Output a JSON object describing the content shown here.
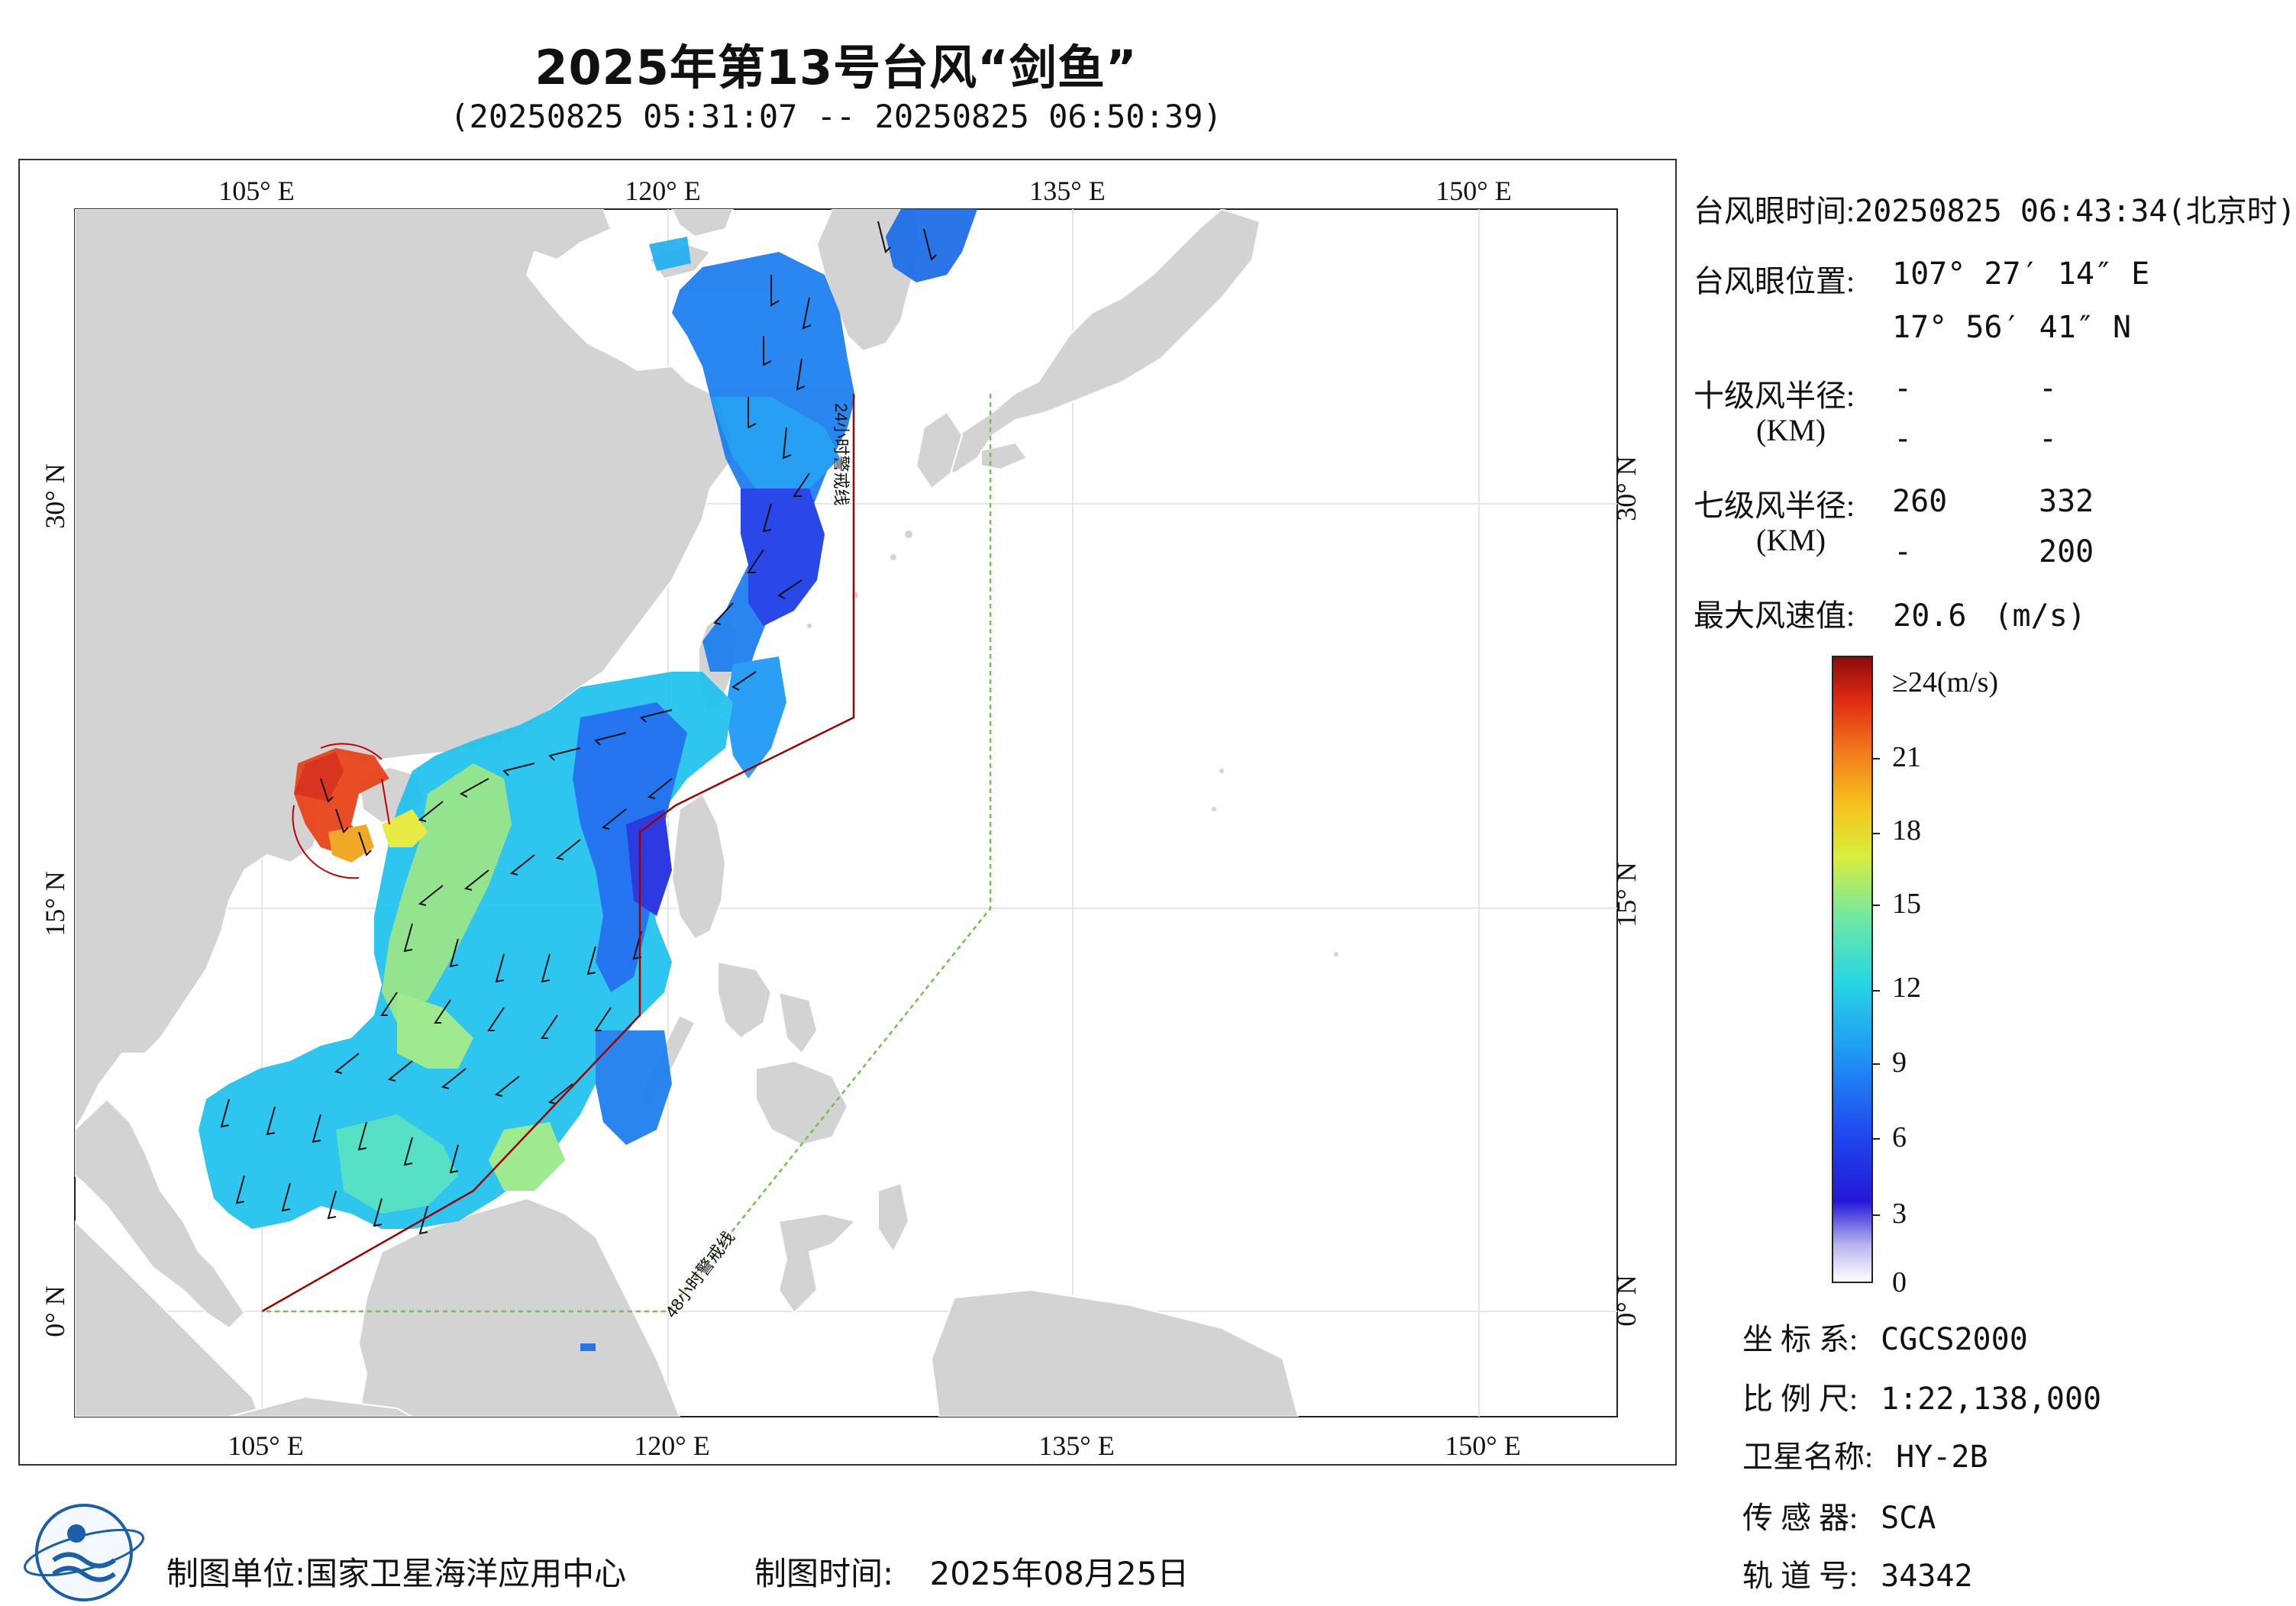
{
  "header": {
    "title": "2025年第13号台风“剑鱼”",
    "time_range": "(20250825 05:31:07 -- 20250825 06:50:39)"
  },
  "map": {
    "lon_labels_top": [
      "105° E",
      "120° E",
      "135° E",
      "150° E"
    ],
    "lon_labels_bottom": [
      "105° E",
      "120° E",
      "135° E",
      "150° E"
    ],
    "lat_labels_left": [
      "30° N",
      "15° N",
      "0° N"
    ],
    "lat_labels_right": [
      "30° N",
      "15° N",
      "0° N"
    ],
    "warning_24h_label": "24小时警戒线",
    "warning_48h_label": "48小时警戒线",
    "colors": {
      "land": "#d3d3d3",
      "ocean": "#ffffff",
      "warning_24h": "#a00000",
      "warning_48h": "#6fc24a",
      "grid": "#e6e6e6"
    }
  },
  "info_panel": {
    "eye_time_label": "台风眼时间:",
    "eye_time_value": "20250825 06:43:34(北京时)",
    "eye_pos_label": "台风眼位置:",
    "eye_lon": "107° 27′ 14″ E",
    "eye_lat": "17° 56′ 41″ N",
    "r10_label": "十级风半径:",
    "r10_unit": "(KM)",
    "r10_values": [
      "-",
      "-",
      "-",
      "-"
    ],
    "r7_label": "七级风半径:",
    "r7_unit": "(KM)",
    "r7_values": [
      "260",
      "332",
      "-",
      "200"
    ],
    "max_wind_label": "最大风速值:",
    "max_wind_value": "20.6",
    "max_wind_unit": "(m/s)"
  },
  "colorbar": {
    "top_label": "≥24(m/s)",
    "ticks": [
      "21",
      "18",
      "15",
      "12",
      "9",
      "6",
      "3",
      "0"
    ]
  },
  "meta": {
    "crs_label": "坐 标 系:",
    "crs_value": "CGCS2000",
    "scale_label": "比 例 尺:",
    "scale_value": "1:22,138,000",
    "satellite_label": "卫星名称:",
    "satellite_value": "HY-2B",
    "sensor_label": "传 感 器:",
    "sensor_value": "SCA",
    "orbit_label": "轨 道 号:",
    "orbit_value": "34342"
  },
  "footer": {
    "unit": "制图单位:国家卫星海洋应用中心",
    "time_label": "制图时间:",
    "time_value": "2025年08月25日"
  }
}
